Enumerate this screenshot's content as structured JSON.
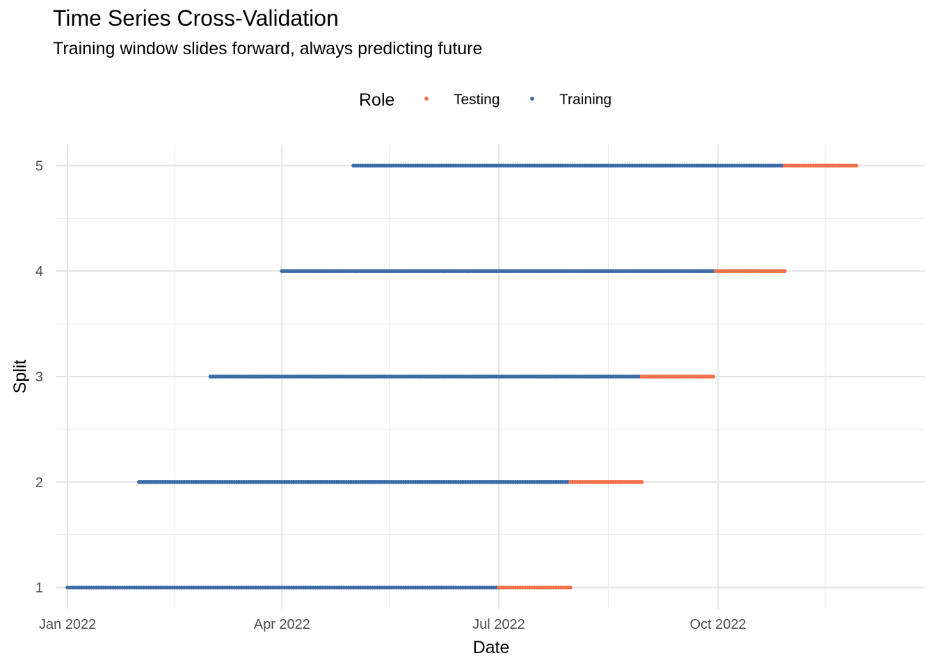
{
  "chart_data": {
    "type": "scatter",
    "title": "Time Series Cross-Validation",
    "subtitle": "Training window slides forward, always predicting future",
    "xlabel": "Date",
    "ylabel": "Split",
    "xlim": [
      "2021-12-27",
      "2022-12-27"
    ],
    "ylim": [
      0.8,
      5.2
    ],
    "x_ticks": [
      {
        "value": "2022-01-01",
        "label": "Jan 2022"
      },
      {
        "value": "2022-04-01",
        "label": "Apr 2022"
      },
      {
        "value": "2022-07-01",
        "label": "Jul 2022"
      },
      {
        "value": "2022-10-01",
        "label": "Oct 2022"
      }
    ],
    "x_minor_ticks": [
      "2022-02-15",
      "2022-05-16",
      "2022-08-16",
      "2022-11-15"
    ],
    "y_ticks": [
      "1",
      "2",
      "3",
      "4",
      "5"
    ],
    "grid": true,
    "legend": {
      "title": "Role",
      "placement": "top"
    },
    "series": [
      {
        "name": "Testing",
        "color": "#F4704A",
        "segments": [
          {
            "split": 1,
            "start": "2022-07-01",
            "end": "2022-07-31"
          },
          {
            "split": 2,
            "start": "2022-07-31",
            "end": "2022-08-30"
          },
          {
            "split": 3,
            "start": "2022-08-30",
            "end": "2022-09-29"
          },
          {
            "split": 4,
            "start": "2022-09-30",
            "end": "2022-10-29"
          },
          {
            "split": 5,
            "start": "2022-10-29",
            "end": "2022-11-28"
          }
        ]
      },
      {
        "name": "Training",
        "color": "#3B6CA8",
        "segments": [
          {
            "split": 1,
            "start": "2022-01-01",
            "end": "2022-06-30"
          },
          {
            "split": 2,
            "start": "2022-01-31",
            "end": "2022-07-30"
          },
          {
            "split": 3,
            "start": "2022-03-02",
            "end": "2022-08-29"
          },
          {
            "split": 4,
            "start": "2022-04-01",
            "end": "2022-09-29"
          },
          {
            "split": 5,
            "start": "2022-05-01",
            "end": "2022-10-28"
          }
        ]
      }
    ]
  }
}
